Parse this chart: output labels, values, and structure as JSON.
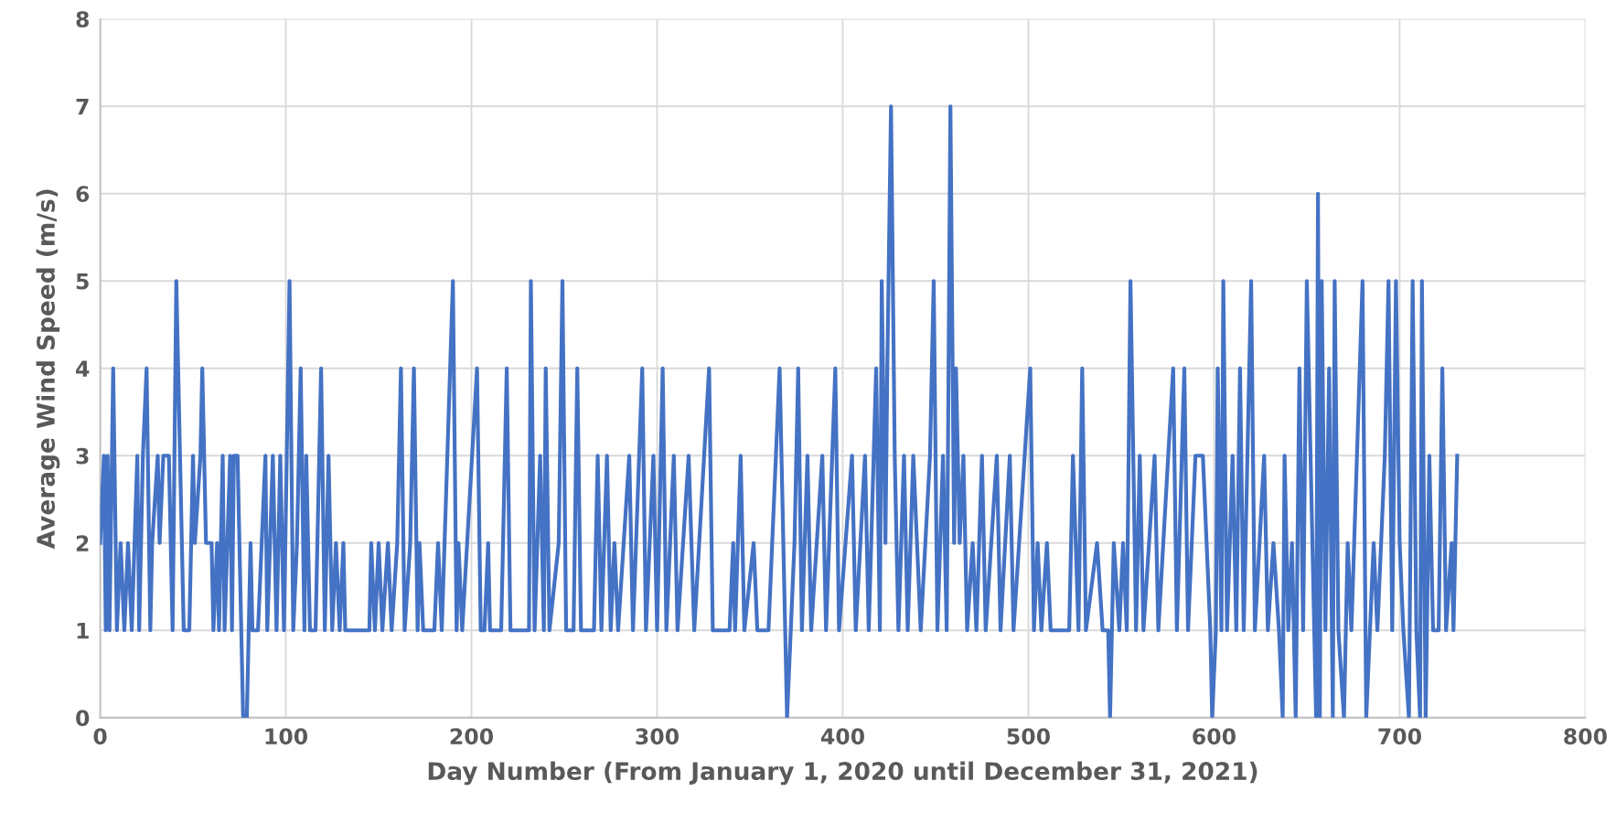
{
  "chart_data": {
    "type": "line",
    "xlabel": "Day Number (From January 1, 2020 until December 31, 2021)",
    "ylabel": "Average Wind Speed (m/s)",
    "xlim": [
      0,
      800
    ],
    "xticks": [
      0,
      100,
      200,
      300,
      400,
      500,
      600,
      700,
      800
    ],
    "ylim": [
      0,
      8
    ],
    "yticks": [
      0,
      1,
      2,
      3,
      4,
      5,
      6,
      7,
      8
    ],
    "grid": true,
    "marker": "none",
    "line_style": "solid",
    "series": [
      {
        "color": "#4472c4",
        "x": [
          0,
          2,
          3,
          4,
          5,
          7,
          9,
          11,
          13,
          15,
          17,
          20,
          21,
          23,
          25,
          27,
          28,
          31,
          32,
          34,
          37,
          39,
          41,
          45,
          48,
          50,
          51,
          54,
          55,
          57,
          60,
          61,
          63,
          64,
          66,
          67,
          70,
          71,
          72,
          74,
          77,
          79,
          80,
          81,
          82,
          85,
          87,
          89,
          90,
          93,
          95,
          97,
          98,
          99,
          102,
          104,
          106,
          108,
          110,
          111,
          113,
          116,
          118,
          119,
          121,
          123,
          125,
          127,
          129,
          131,
          132,
          145,
          146,
          148,
          150,
          152,
          155,
          157,
          160,
          162,
          164,
          167,
          169,
          171,
          172,
          174,
          180,
          182,
          184,
          190,
          192,
          193,
          195,
          203,
          205,
          207,
          209,
          210,
          216,
          217,
          219,
          221,
          231,
          232,
          234,
          237,
          239,
          240,
          242,
          247,
          249,
          251,
          255,
          257,
          259,
          266,
          268,
          270,
          273,
          275,
          277,
          279,
          285,
          287,
          292,
          294,
          298,
          300,
          303,
          305,
          309,
          311,
          317,
          320,
          328,
          330,
          339,
          341,
          342,
          345,
          347,
          352,
          354,
          360,
          366,
          369,
          370,
          372,
          374,
          376,
          378,
          381,
          383,
          389,
          391,
          396,
          398,
          405,
          407,
          412,
          414,
          418,
          420,
          421,
          423,
          424,
          426,
          428,
          430,
          433,
          435,
          438,
          440,
          442,
          447,
          449,
          451,
          454,
          456,
          458,
          460,
          461,
          463,
          465,
          467,
          470,
          472,
          475,
          477,
          483,
          485,
          490,
          492,
          501,
          503,
          505,
          507,
          510,
          512,
          522,
          524,
          527,
          529,
          531,
          537,
          540,
          543,
          544,
          546,
          549,
          551,
          553,
          555,
          558,
          560,
          562,
          568,
          570,
          578,
          580,
          584,
          586,
          590,
          594,
          596,
          598,
          599,
          601,
          602,
          604,
          605,
          607,
          610,
          612,
          614,
          616,
          619,
          620,
          622,
          627,
          629,
          632,
          635,
          637,
          638,
          640,
          642,
          644,
          645,
          646,
          648,
          650,
          652,
          654,
          655,
          656,
          657,
          658,
          660,
          662,
          664,
          665,
          667,
          670,
          672,
          674,
          677,
          680,
          682,
          684,
          686,
          688,
          692,
          694,
          696,
          698,
          700,
          702,
          705,
          707,
          709,
          711,
          712,
          714,
          716,
          718,
          721,
          723,
          725,
          728,
          729,
          731
        ],
        "values": [
          2,
          3,
          1,
          3,
          1,
          4,
          1,
          2,
          1,
          2,
          1,
          3,
          1,
          3,
          4,
          1,
          2,
          3,
          2,
          3,
          3,
          1,
          5,
          1,
          1,
          3,
          2,
          3,
          4,
          2,
          2,
          1,
          2,
          1,
          3,
          1,
          3,
          1,
          3,
          3,
          0,
          0,
          1,
          2,
          1,
          1,
          2,
          3,
          1,
          3,
          1,
          3,
          2,
          1,
          5,
          1,
          2,
          4,
          1,
          3,
          1,
          1,
          3,
          4,
          1,
          3,
          1,
          2,
          1,
          2,
          1,
          1,
          2,
          1,
          2,
          1,
          2,
          1,
          2,
          4,
          1,
          2,
          4,
          1,
          2,
          1,
          1,
          2,
          1,
          5,
          1,
          2,
          1,
          4,
          1,
          1,
          2,
          1,
          1,
          2,
          4,
          1,
          1,
          5,
          1,
          3,
          1,
          4,
          1,
          2,
          5,
          1,
          1,
          4,
          1,
          1,
          3,
          1,
          3,
          1,
          2,
          1,
          3,
          1,
          4,
          1,
          3,
          1,
          4,
          1,
          3,
          1,
          3,
          1,
          4,
          1,
          1,
          2,
          1,
          3,
          1,
          2,
          1,
          1,
          4,
          1,
          0,
          1,
          2,
          4,
          1,
          3,
          1,
          3,
          1,
          4,
          1,
          3,
          1,
          3,
          1,
          4,
          1,
          5,
          2,
          4,
          7,
          3,
          1,
          3,
          1,
          3,
          2,
          1,
          3,
          5,
          1,
          3,
          1,
          7,
          2,
          4,
          2,
          3,
          1,
          2,
          1,
          3,
          1,
          3,
          1,
          3,
          1,
          4,
          1,
          2,
          1,
          2,
          1,
          1,
          3,
          1,
          4,
          1,
          2,
          1,
          1,
          0,
          2,
          1,
          2,
          1,
          5,
          1,
          3,
          1,
          3,
          1,
          4,
          1,
          4,
          1,
          3,
          3,
          2,
          1,
          0,
          1,
          4,
          1,
          5,
          1,
          3,
          1,
          4,
          1,
          4,
          5,
          1,
          3,
          1,
          2,
          1,
          0,
          3,
          1,
          2,
          0,
          2,
          4,
          1,
          5,
          3,
          1,
          0,
          6,
          0,
          5,
          1,
          4,
          0,
          5,
          1,
          0,
          2,
          1,
          3,
          5,
          0,
          1,
          2,
          1,
          3,
          5,
          1,
          5,
          2,
          1,
          0,
          5,
          1,
          0,
          5,
          0,
          3,
          1,
          1,
          4,
          1,
          2,
          1,
          3
        ]
      }
    ]
  }
}
